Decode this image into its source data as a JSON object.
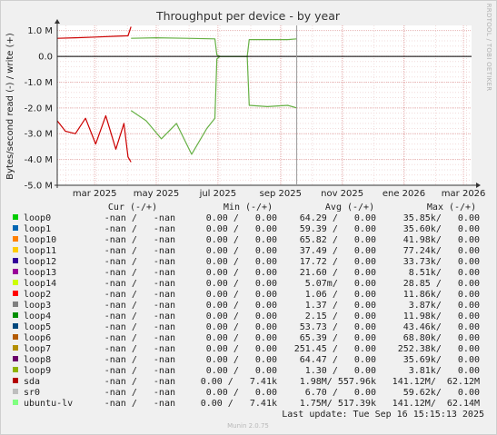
{
  "chart_data": {
    "type": "line",
    "title": "Throughput per device - by year",
    "ylabel": "Bytes/second read (-) / write (+)",
    "side_label": "RRDTOOL / TOBI OETIKER",
    "footer": "Munin 2.0.75",
    "y_ticks": [
      "1.0 M",
      "0.0",
      "-1.0 M",
      "-2.0 M",
      "-3.0 M",
      "-4.0 M",
      "-5.0 M"
    ],
    "y_tick_values": [
      1.0,
      0.0,
      -1.0,
      -2.0,
      -3.0,
      -4.0,
      -5.0
    ],
    "ylim": [
      -5.0,
      1.2
    ],
    "x_ticks": [
      "mar 2025",
      "may 2025",
      "jul 2025",
      "sep 2025",
      "nov 2025",
      "ene 2026",
      "mar 2026"
    ],
    "x_tick_days": [
      59,
      120,
      181,
      243,
      304,
      365,
      424
    ],
    "x_range_days": [
      22,
      432
    ],
    "now_day": 259,
    "grid": true,
    "x_unit": "days from 2025-01-01",
    "series": [
      {
        "name": "sda write",
        "color": "#cc0000",
        "x": [
          22,
          40,
          60,
          80,
          92,
          95
        ],
        "y": [
          0.7,
          0.72,
          0.75,
          0.78,
          0.8,
          1.15
        ]
      },
      {
        "name": "sda read",
        "color": "#cc0000",
        "x": [
          22,
          30,
          40,
          50,
          60,
          70,
          80,
          88,
          92,
          95
        ],
        "y": [
          -2.5,
          -2.9,
          -3.0,
          -2.4,
          -3.4,
          -2.3,
          -3.6,
          -2.6,
          -3.9,
          -4.1
        ]
      },
      {
        "name": "ubuntu-lv write",
        "color": "#66b044",
        "x": [
          95,
          120,
          150,
          178,
          180,
          183,
          210,
          212,
          250,
          259
        ],
        "y": [
          0.7,
          0.72,
          0.7,
          0.68,
          0.05,
          0.0,
          0.0,
          0.65,
          0.65,
          0.68
        ]
      },
      {
        "name": "ubuntu-lv read",
        "color": "#66b044",
        "x": [
          95,
          110,
          125,
          140,
          155,
          170,
          178,
          180,
          183,
          210,
          212,
          230,
          250,
          259
        ],
        "y": [
          -2.1,
          -2.5,
          -3.2,
          -2.6,
          -3.8,
          -2.8,
          -2.4,
          -0.1,
          0.0,
          0.0,
          -1.9,
          -1.95,
          -1.9,
          -2.0
        ]
      }
    ]
  },
  "legend": {
    "headers": {
      "cur": "Cur (-/+)",
      "min": "Min (-/+)",
      "avg": "Avg (-/+)",
      "max": "Max (-/+)"
    },
    "rows": [
      {
        "name": "loop0",
        "color": "#00cc00",
        "cur": "-nan /   -nan",
        "min": "0.00 /   0.00",
        "avg": "64.29 /   0.00",
        "max": "35.85k/   0.00"
      },
      {
        "name": "loop1",
        "color": "#0066b3",
        "cur": "-nan /   -nan",
        "min": "0.00 /   0.00",
        "avg": "59.39 /   0.00",
        "max": "35.60k/   0.00"
      },
      {
        "name": "loop10",
        "color": "#ff8000",
        "cur": "-nan /   -nan",
        "min": "0.00 /   0.00",
        "avg": "65.82 /   0.00",
        "max": "41.98k/   0.00"
      },
      {
        "name": "loop11",
        "color": "#ffcc00",
        "cur": "-nan /   -nan",
        "min": "0.00 /   0.00",
        "avg": "37.49 /   0.00",
        "max": "77.24k/   0.00"
      },
      {
        "name": "loop12",
        "color": "#330099",
        "cur": "-nan /   -nan",
        "min": "0.00 /   0.00",
        "avg": "17.72 /   0.00",
        "max": "33.73k/   0.00"
      },
      {
        "name": "loop13",
        "color": "#990099",
        "cur": "-nan /   -nan",
        "min": "0.00 /   0.00",
        "avg": "21.60 /   0.00",
        "max": "8.51k/   0.00"
      },
      {
        "name": "loop14",
        "color": "#ccff00",
        "cur": "-nan /   -nan",
        "min": "0.00 /   0.00",
        "avg": "5.07m/   0.00",
        "max": "28.85 /   0.00"
      },
      {
        "name": "loop2",
        "color": "#ff0000",
        "cur": "-nan /   -nan",
        "min": "0.00 /   0.00",
        "avg": "1.06 /   0.00",
        "max": "11.86k/   0.00"
      },
      {
        "name": "loop3",
        "color": "#808080",
        "cur": "-nan /   -nan",
        "min": "0.00 /   0.00",
        "avg": "1.37 /   0.00",
        "max": "3.87k/   0.00"
      },
      {
        "name": "loop4",
        "color": "#008f00",
        "cur": "-nan /   -nan",
        "min": "0.00 /   0.00",
        "avg": "2.15 /   0.00",
        "max": "11.98k/   0.00"
      },
      {
        "name": "loop5",
        "color": "#00487d",
        "cur": "-nan /   -nan",
        "min": "0.00 /   0.00",
        "avg": "53.73 /   0.00",
        "max": "43.46k/   0.00"
      },
      {
        "name": "loop6",
        "color": "#b35a00",
        "cur": "-nan /   -nan",
        "min": "0.00 /   0.00",
        "avg": "65.39 /   0.00",
        "max": "68.80k/   0.00"
      },
      {
        "name": "loop7",
        "color": "#b38f00",
        "cur": "-nan /   -nan",
        "min": "0.00 /   0.00",
        "avg": "251.45 /   0.00",
        "max": "252.38k/   0.00"
      },
      {
        "name": "loop8",
        "color": "#6b006b",
        "cur": "-nan /   -nan",
        "min": "0.00 /   0.00",
        "avg": "64.47 /   0.00",
        "max": "35.69k/   0.00"
      },
      {
        "name": "loop9",
        "color": "#8fb300",
        "cur": "-nan /   -nan",
        "min": "0.00 /   0.00",
        "avg": "1.30 /   0.00",
        "max": "3.81k/   0.00"
      },
      {
        "name": "sda",
        "color": "#b30000",
        "cur": "-nan /   -nan",
        "min": "0.00 /   7.41k",
        "avg": "1.98M/ 557.96k",
        "max": "141.12M/  62.12M"
      },
      {
        "name": "sr0",
        "color": "#bebebe",
        "cur": "-nan /   -nan",
        "min": "0.00 /   0.00",
        "avg": "6.70 /   0.00",
        "max": "59.62k/   0.00"
      },
      {
        "name": "ubuntu-lv",
        "color": "#80ff80",
        "cur": "-nan /   -nan",
        "min": "0.00 /   7.41k",
        "avg": "1.75M/ 517.39k",
        "max": "141.12M/  62.14M"
      }
    ],
    "last_update": "Last update: Tue Sep 16 15:15:13 2025"
  }
}
